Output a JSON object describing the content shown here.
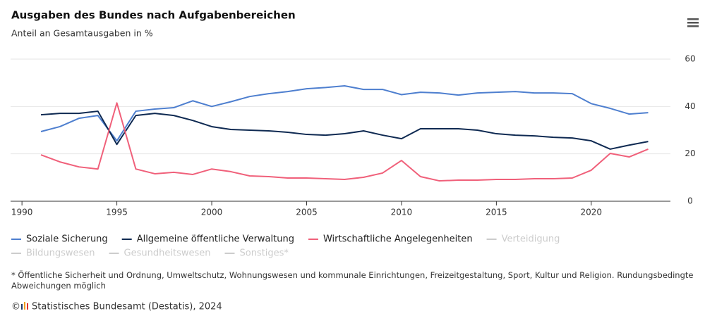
{
  "chart_data": {
    "type": "line",
    "title": "Ausgaben des Bundes nach Aufgabenbereichen",
    "subtitle": "Anteil an Gesamtausgaben in %",
    "x": [
      1991,
      1992,
      1993,
      1994,
      1995,
      1996,
      1997,
      1998,
      1999,
      2000,
      2001,
      2002,
      2003,
      2004,
      2005,
      2006,
      2007,
      2008,
      2009,
      2010,
      2011,
      2012,
      2013,
      2014,
      2015,
      2016,
      2017,
      2018,
      2019,
      2020,
      2021,
      2022,
      2023
    ],
    "series": [
      {
        "name": "Soziale Sicherung",
        "color": "#4e7fcf",
        "values": [
          29.4,
          31.5,
          35,
          36.2,
          25.5,
          38,
          38.9,
          39.5,
          42.4,
          40,
          42,
          44.2,
          45.4,
          46.3,
          47.5,
          48,
          48.7,
          47.2,
          47.2,
          45,
          46,
          45.7,
          44.8,
          45.7,
          46,
          46.3,
          45.7,
          45.7,
          45.4,
          41.2,
          39.2,
          36.8,
          37.4
        ]
      },
      {
        "name": "Allgemeine öffentliche Verwaltung",
        "color": "#0f2a52",
        "values": [
          36.5,
          37.1,
          37.1,
          38,
          24,
          36.2,
          37.1,
          36.2,
          34.1,
          31.5,
          30.3,
          30,
          29.7,
          29.1,
          28.2,
          27.9,
          28.5,
          29.7,
          27.9,
          26.4,
          30.6,
          30.6,
          30.6,
          30,
          28.5,
          27.9,
          27.6,
          27,
          26.7,
          25.5,
          22,
          23.7,
          25.2
        ]
      },
      {
        "name": "Wirtschaftliche Angelegenheiten",
        "color": "#f0607a",
        "values": [
          19.6,
          16.6,
          14.5,
          13.6,
          41.5,
          13.6,
          11.6,
          12.2,
          11.3,
          13.6,
          12.5,
          10.7,
          10.4,
          9.8,
          9.8,
          9.5,
          9.2,
          10.1,
          11.9,
          17.2,
          10.4,
          8.6,
          8.9,
          8.9,
          9.2,
          9.2,
          9.5,
          9.5,
          9.8,
          13.1,
          20.2,
          18.7,
          22
        ]
      }
    ],
    "inactive_legend": [
      "Verteidigung",
      "Bildungswesen",
      "Gesundheitswesen",
      "Sonstiges*"
    ],
    "inactive_color": "#cccccc",
    "xlim": [
      1989.4,
      2023.8
    ],
    "xticks": [
      1990,
      1995,
      2000,
      2005,
      2010,
      2015,
      2020
    ],
    "ylim": [
      0,
      60
    ],
    "yticks": [
      0,
      20,
      40,
      60
    ],
    "grid": true,
    "footnote": "* Öffentliche Sicherheit und Ordnung, Umweltschutz, Wohnungswesen und kommunale Einrichtungen, Freizeitgestaltung, Sport, Kultur und Religion. Rundungsbedingte Abweichungen möglich",
    "credit": "Statistisches Bundesamt (Destatis), 2024"
  }
}
